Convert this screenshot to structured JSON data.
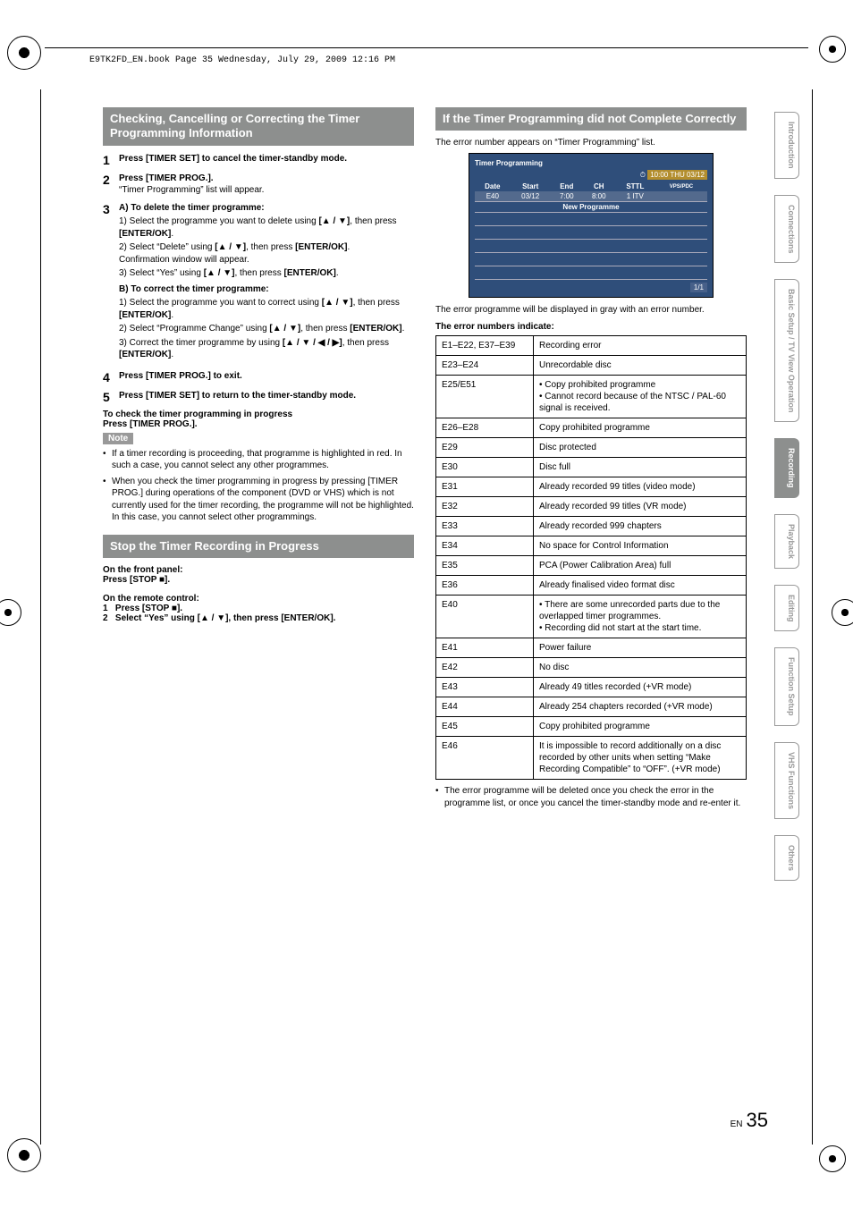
{
  "meta": {
    "running_head": "E9TK2FD_EN.book  Page 35  Wednesday, July 29, 2009  12:16 PM"
  },
  "section1": {
    "title": "Checking, Cancelling or Correcting the Timer Programming Information",
    "steps": {
      "s1": "Press [TIMER SET] to cancel the timer-standby mode.",
      "s2a": "Press [TIMER PROG.].",
      "s2b": "“Timer Programming” list will appear.",
      "s3a": "A) To delete the timer programme:",
      "s3a1_a": "1) Select the programme you want to delete using ",
      "s3a1_b": ", then press ",
      "s3a1_c": "[ENTER/OK]",
      "s3a2_a": "2) Select “Delete” using ",
      "s3a2_b": ", then press ",
      "s3a2_c": "[ENTER/OK]",
      "s3a2_d": "Confirmation window will appear.",
      "s3a3_a": "3) Select “Yes” using ",
      "s3a3_b": ", then press ",
      "s3a3_c": "[ENTER/OK]",
      "s3b": "B) To correct the timer programme:",
      "s3b1_a": "1) Select the programme you want to correct using ",
      "s3b1_b": ", then press ",
      "s3b1_c": "[ENTER/OK]",
      "s3b2_a": "2) Select “Programme Change” using ",
      "s3b2_b": ", then press ",
      "s3b2_c": "[ENTER/OK]",
      "s3b3_a": "3) Correct the timer programme by using ",
      "s3b3_b": ", then press ",
      "s3b3_c": "[ENTER/OK]",
      "s4": "Press [TIMER PROG.] to exit.",
      "s5": "Press [TIMER SET] to return to the timer-standby mode."
    },
    "check1": "To check the timer programming in progress",
    "check2": "Press [TIMER PROG.].",
    "note_label": "Note",
    "note1": "If a timer recording is proceeding, that programme is highlighted in red. In such a case, you cannot select any other programmes.",
    "note2": "When you check the timer programming in progress by pressing [TIMER PROG.] during operations of the component (DVD or VHS) which is not currently used for the timer recording, the programme will not be highlighted. In this case, you cannot select other programmings."
  },
  "section2": {
    "title": "Stop the Timer Recording in Progress",
    "fp_head": "On the front panel:",
    "fp_body_a": "Press [STOP ",
    "fp_body_b": "].",
    "rc_head": "On the remote control:",
    "rc1_a": "Press [STOP ",
    "rc1_b": "].",
    "rc2_a": "Select “Yes” using ",
    "rc2_b": ", then press [ENTER/OK]."
  },
  "section3": {
    "title": "If the Timer Programming did not Complete Correctly",
    "intro": "The error number appears on “Timer Programming” list.",
    "screen": {
      "title": "Timer Programming",
      "time": "10:00 THU 03/12",
      "cols": [
        "Date",
        "Start",
        "End",
        "CH",
        "STTL",
        "VPS/PDC"
      ],
      "row_e": [
        "E40",
        "03/12",
        "7:00",
        "8:00",
        "1 ITV",
        ""
      ],
      "new_prog": "New Programme",
      "pager": "1/1"
    },
    "after_screen": "The error programme will be displayed in gray with an error number.",
    "err_head": "The error numbers indicate:",
    "errors": [
      [
        "E1–E22, E37–E39",
        "Recording error"
      ],
      [
        "E23–E24",
        "Unrecordable disc"
      ],
      [
        "E25/E51",
        "• Copy prohibited programme\n• Cannot record because of the NTSC / PAL-60 signal is received."
      ],
      [
        "E26–E28",
        "Copy prohibited programme"
      ],
      [
        "E29",
        "Disc protected"
      ],
      [
        "E30",
        "Disc full"
      ],
      [
        "E31",
        "Already recorded 99 titles (video mode)"
      ],
      [
        "E32",
        "Already recorded 99 titles (VR mode)"
      ],
      [
        "E33",
        "Already recorded 999 chapters"
      ],
      [
        "E34",
        "No space for Control Information"
      ],
      [
        "E35",
        "PCA (Power Calibration Area) full"
      ],
      [
        "E36",
        "Already finalised video format disc"
      ],
      [
        "E40",
        "• There are some unrecorded parts due to the overlapped timer programmes.\n• Recording did not start at the start time."
      ],
      [
        "E41",
        "Power failure"
      ],
      [
        "E42",
        "No disc"
      ],
      [
        "E43",
        "Already 49 titles recorded (+VR mode)"
      ],
      [
        "E44",
        "Already 254 chapters recorded (+VR mode)"
      ],
      [
        "E45",
        "Copy prohibited programme"
      ],
      [
        "E46",
        "It is impossible to record additionally on a disc recorded by other units when setting “Make Recording Compatible” to “OFF”. (+VR mode)"
      ]
    ],
    "foot": "The error programme will be deleted once you check the error in the programme list, or once you cancel the timer-standby mode and re-enter it."
  },
  "tabs": [
    "Introduction",
    "Connections",
    "Basic Setup / TV View Operation",
    "Recording",
    "Playback",
    "Editing",
    "Function Setup",
    "VHS Functions",
    "Others"
  ],
  "active_tab_index": 3,
  "page": {
    "en": "EN",
    "num": "35"
  },
  "glyphs": {
    "updown": "[▲ / ▼]",
    "all4": "[▲ / ▼ / ◀ / ▶]",
    "stop": "■"
  }
}
